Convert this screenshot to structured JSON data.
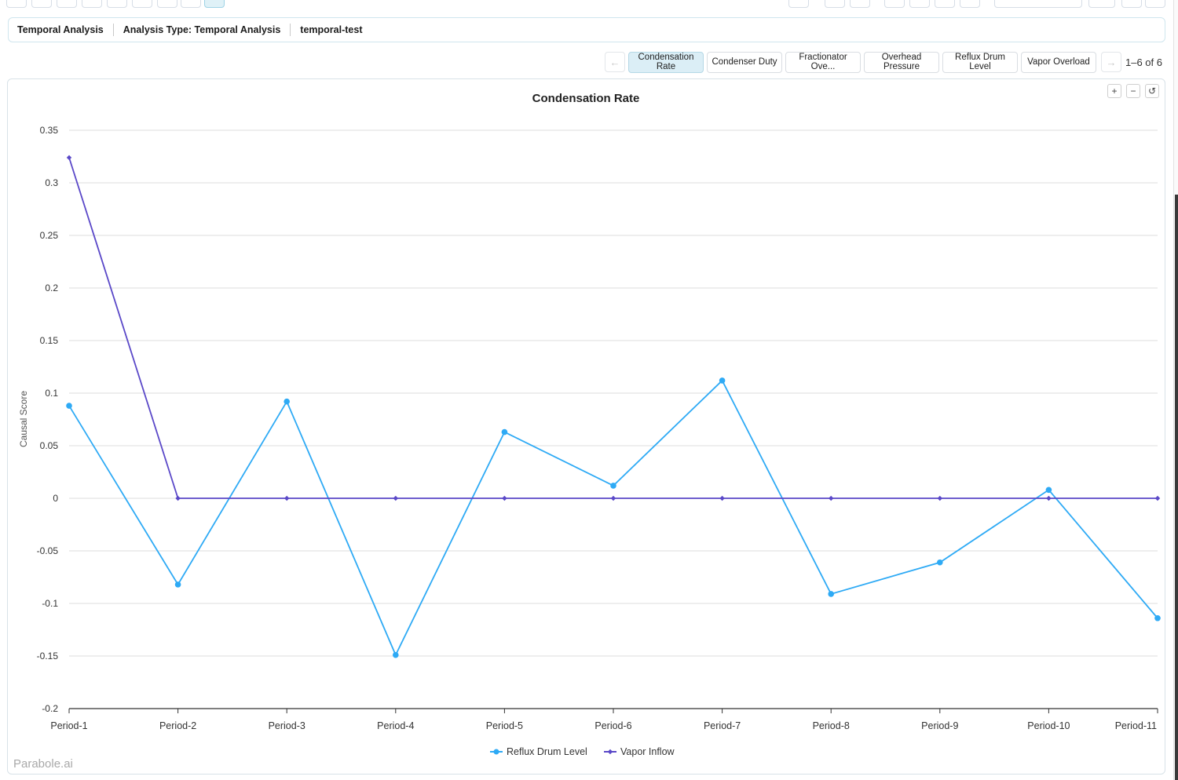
{
  "breadcrumb": {
    "section": "Temporal Analysis",
    "analysis_type": "Analysis Type: Temporal Analysis",
    "name": "temporal-test"
  },
  "tabs": [
    {
      "label": "Condensation Rate",
      "active": true
    },
    {
      "label": "Condenser Duty",
      "active": false
    },
    {
      "label": "Fractionator Ove...",
      "active": false
    },
    {
      "label": "Overhead Pressure",
      "active": false
    },
    {
      "label": "Reflux Drum Level",
      "active": false
    },
    {
      "label": "Vapor Overload",
      "active": false
    }
  ],
  "pager": {
    "prev_icon": "arrow-left-icon",
    "next_icon": "arrow-right-icon",
    "text": "1–6 of 6"
  },
  "zoom": {
    "zoom_in": "+",
    "zoom_out": "−",
    "reset": "↺"
  },
  "watermark": "Parabole.ai",
  "chart_data": {
    "type": "line",
    "title": "Condensation Rate",
    "ylabel": "Causal Score",
    "xlabel": "",
    "ylim": [
      -0.2,
      0.35
    ],
    "yticks": [
      -0.2,
      -0.15,
      -0.1,
      -0.05,
      0,
      0.05,
      0.1,
      0.15,
      0.2,
      0.25,
      0.3,
      0.35
    ],
    "grid": true,
    "legend_position": "bottom",
    "categories": [
      "Period-1",
      "Period-2",
      "Period-3",
      "Period-4",
      "Period-5",
      "Period-6",
      "Period-7",
      "Period-8",
      "Period-9",
      "Period-10",
      "Period-11"
    ],
    "series": [
      {
        "name": "Reflux Drum Level",
        "color": "#2eaaf5",
        "marker": "circle",
        "values": [
          0.088,
          -0.082,
          0.092,
          -0.149,
          0.063,
          0.012,
          0.112,
          -0.091,
          -0.061,
          0.008,
          -0.114
        ]
      },
      {
        "name": "Vapor Inflow",
        "color": "#5a48c8",
        "marker": "diamond",
        "values": [
          0.324,
          0,
          0,
          0,
          0,
          0,
          0,
          0,
          0,
          0,
          0
        ]
      }
    ]
  }
}
